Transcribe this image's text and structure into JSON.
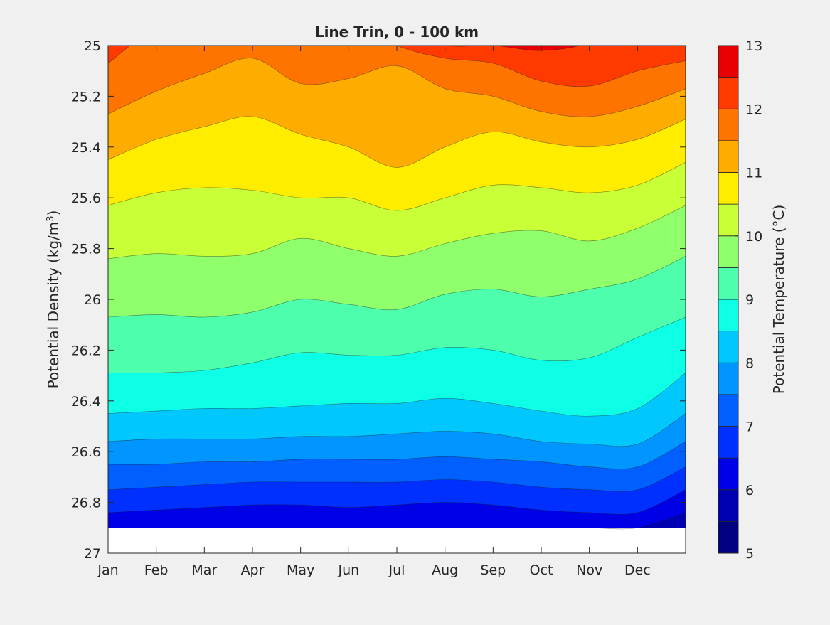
{
  "chart_data": {
    "type": "contour",
    "title": "Line Trin, 0 - 100 km",
    "xlabel": "",
    "ylabel": "Potential Density (kg/m",
    "ylabel_sup": "3",
    "ylabel_close": ")",
    "x_tick_labels": [
      "Jan",
      "Feb",
      "Mar",
      "Apr",
      "May",
      "Jun",
      "Jul",
      "Aug",
      "Sep",
      "Oct",
      "Nov",
      "Dec"
    ],
    "x_tick_months": [
      1,
      2,
      3,
      4,
      5,
      6,
      7,
      8,
      9,
      10,
      11,
      12
    ],
    "xlim_months": [
      1,
      13
    ],
    "y_ticks": [
      25,
      25.2,
      25.4,
      25.6,
      25.8,
      26,
      26.2,
      26.4,
      26.6,
      26.8,
      27
    ],
    "y_tick_labels": [
      "25",
      "25.2",
      "25.4",
      "25.6",
      "25.8",
      "26",
      "26.2",
      "26.4",
      "26.6",
      "26.8",
      "27"
    ],
    "ylim": [
      25,
      27
    ],
    "y_reversed": true,
    "no_data_below_density": 26.9,
    "colorbar": {
      "label": "Potential Temperature (°C)",
      "range": [
        5,
        13
      ],
      "ticks": [
        5,
        6,
        7,
        8,
        9,
        10,
        11,
        12,
        13
      ],
      "tick_labels": [
        "5",
        "6",
        "7",
        "8",
        "9",
        "10",
        "11",
        "12",
        "13"
      ],
      "levels": [
        5,
        5.5,
        6,
        6.5,
        7,
        7.5,
        8,
        8.5,
        9,
        9.5,
        10,
        10.5,
        11,
        11.5,
        12,
        12.5,
        13
      ],
      "colors": [
        "#000080",
        "#0000b3",
        "#0000e6",
        "#0030ff",
        "#0060ff",
        "#0095ff",
        "#00c8ff",
        "#0dffe6",
        "#4dffad",
        "#8fff6b",
        "#c8ff37",
        "#ffed00",
        "#ffac00",
        "#ff7300",
        "#ff3a00",
        "#e60000",
        "#9e0000"
      ]
    },
    "isotherms_density_by_month": {
      "months": [
        1,
        2,
        3,
        4,
        5,
        6,
        7,
        8,
        9,
        10,
        11,
        12,
        13
      ],
      "lines": [
        {
          "temperature": 12.5,
          "density": [
            24.8,
            24.75,
            24.7,
            24.7,
            24.75,
            24.8,
            24.95,
            25.0,
            25.0,
            25.02,
            24.99,
            24.9,
            24.8
          ]
        },
        {
          "temperature": 12.0,
          "density": [
            25.07,
            24.93,
            24.88,
            24.82,
            24.92,
            24.9,
            25.0,
            25.05,
            25.07,
            25.14,
            25.16,
            25.1,
            25.06
          ]
        },
        {
          "temperature": 11.5,
          "density": [
            25.27,
            25.18,
            25.11,
            25.05,
            25.15,
            25.13,
            25.08,
            25.17,
            25.2,
            25.26,
            25.28,
            25.24,
            25.17
          ]
        },
        {
          "temperature": 11.0,
          "density": [
            25.45,
            25.37,
            25.32,
            25.28,
            25.35,
            25.4,
            25.48,
            25.4,
            25.34,
            25.38,
            25.4,
            25.37,
            25.29
          ]
        },
        {
          "temperature": 10.5,
          "density": [
            25.63,
            25.58,
            25.56,
            25.57,
            25.6,
            25.6,
            25.65,
            25.6,
            25.55,
            25.56,
            25.58,
            25.55,
            25.46
          ]
        },
        {
          "temperature": 10.0,
          "density": [
            25.84,
            25.82,
            25.83,
            25.82,
            25.76,
            25.8,
            25.83,
            25.78,
            25.74,
            25.73,
            25.77,
            25.72,
            25.63
          ]
        },
        {
          "temperature": 9.5,
          "density": [
            26.07,
            26.06,
            26.07,
            26.05,
            26.0,
            26.02,
            26.04,
            25.98,
            25.96,
            25.99,
            25.96,
            25.92,
            25.83
          ]
        },
        {
          "temperature": 9.0,
          "density": [
            26.29,
            26.29,
            26.28,
            26.25,
            26.21,
            26.22,
            26.22,
            26.19,
            26.2,
            26.24,
            26.23,
            26.15,
            26.07
          ]
        },
        {
          "temperature": 8.5,
          "density": [
            26.45,
            26.44,
            26.43,
            26.43,
            26.42,
            26.41,
            26.41,
            26.39,
            26.41,
            26.44,
            26.46,
            26.43,
            26.29
          ]
        },
        {
          "temperature": 8.0,
          "density": [
            26.56,
            26.55,
            26.55,
            26.55,
            26.54,
            26.54,
            26.53,
            26.52,
            26.53,
            26.56,
            26.57,
            26.57,
            26.45
          ]
        },
        {
          "temperature": 7.5,
          "density": [
            26.65,
            26.65,
            26.64,
            26.64,
            26.63,
            26.63,
            26.63,
            26.62,
            26.63,
            26.64,
            26.66,
            26.66,
            26.56
          ]
        },
        {
          "temperature": 7.0,
          "density": [
            26.75,
            26.74,
            26.73,
            26.72,
            26.72,
            26.72,
            26.72,
            26.71,
            26.72,
            26.74,
            26.75,
            26.75,
            26.66
          ]
        },
        {
          "temperature": 6.5,
          "density": [
            26.84,
            26.83,
            26.82,
            26.81,
            26.81,
            26.82,
            26.81,
            26.8,
            26.81,
            26.83,
            26.84,
            26.84,
            26.75
          ]
        },
        {
          "temperature": 6.0,
          "density": [
            26.9,
            26.9,
            26.9,
            26.9,
            26.9,
            26.9,
            26.9,
            26.9,
            26.9,
            26.9,
            26.9,
            26.9,
            26.84
          ]
        }
      ]
    }
  }
}
